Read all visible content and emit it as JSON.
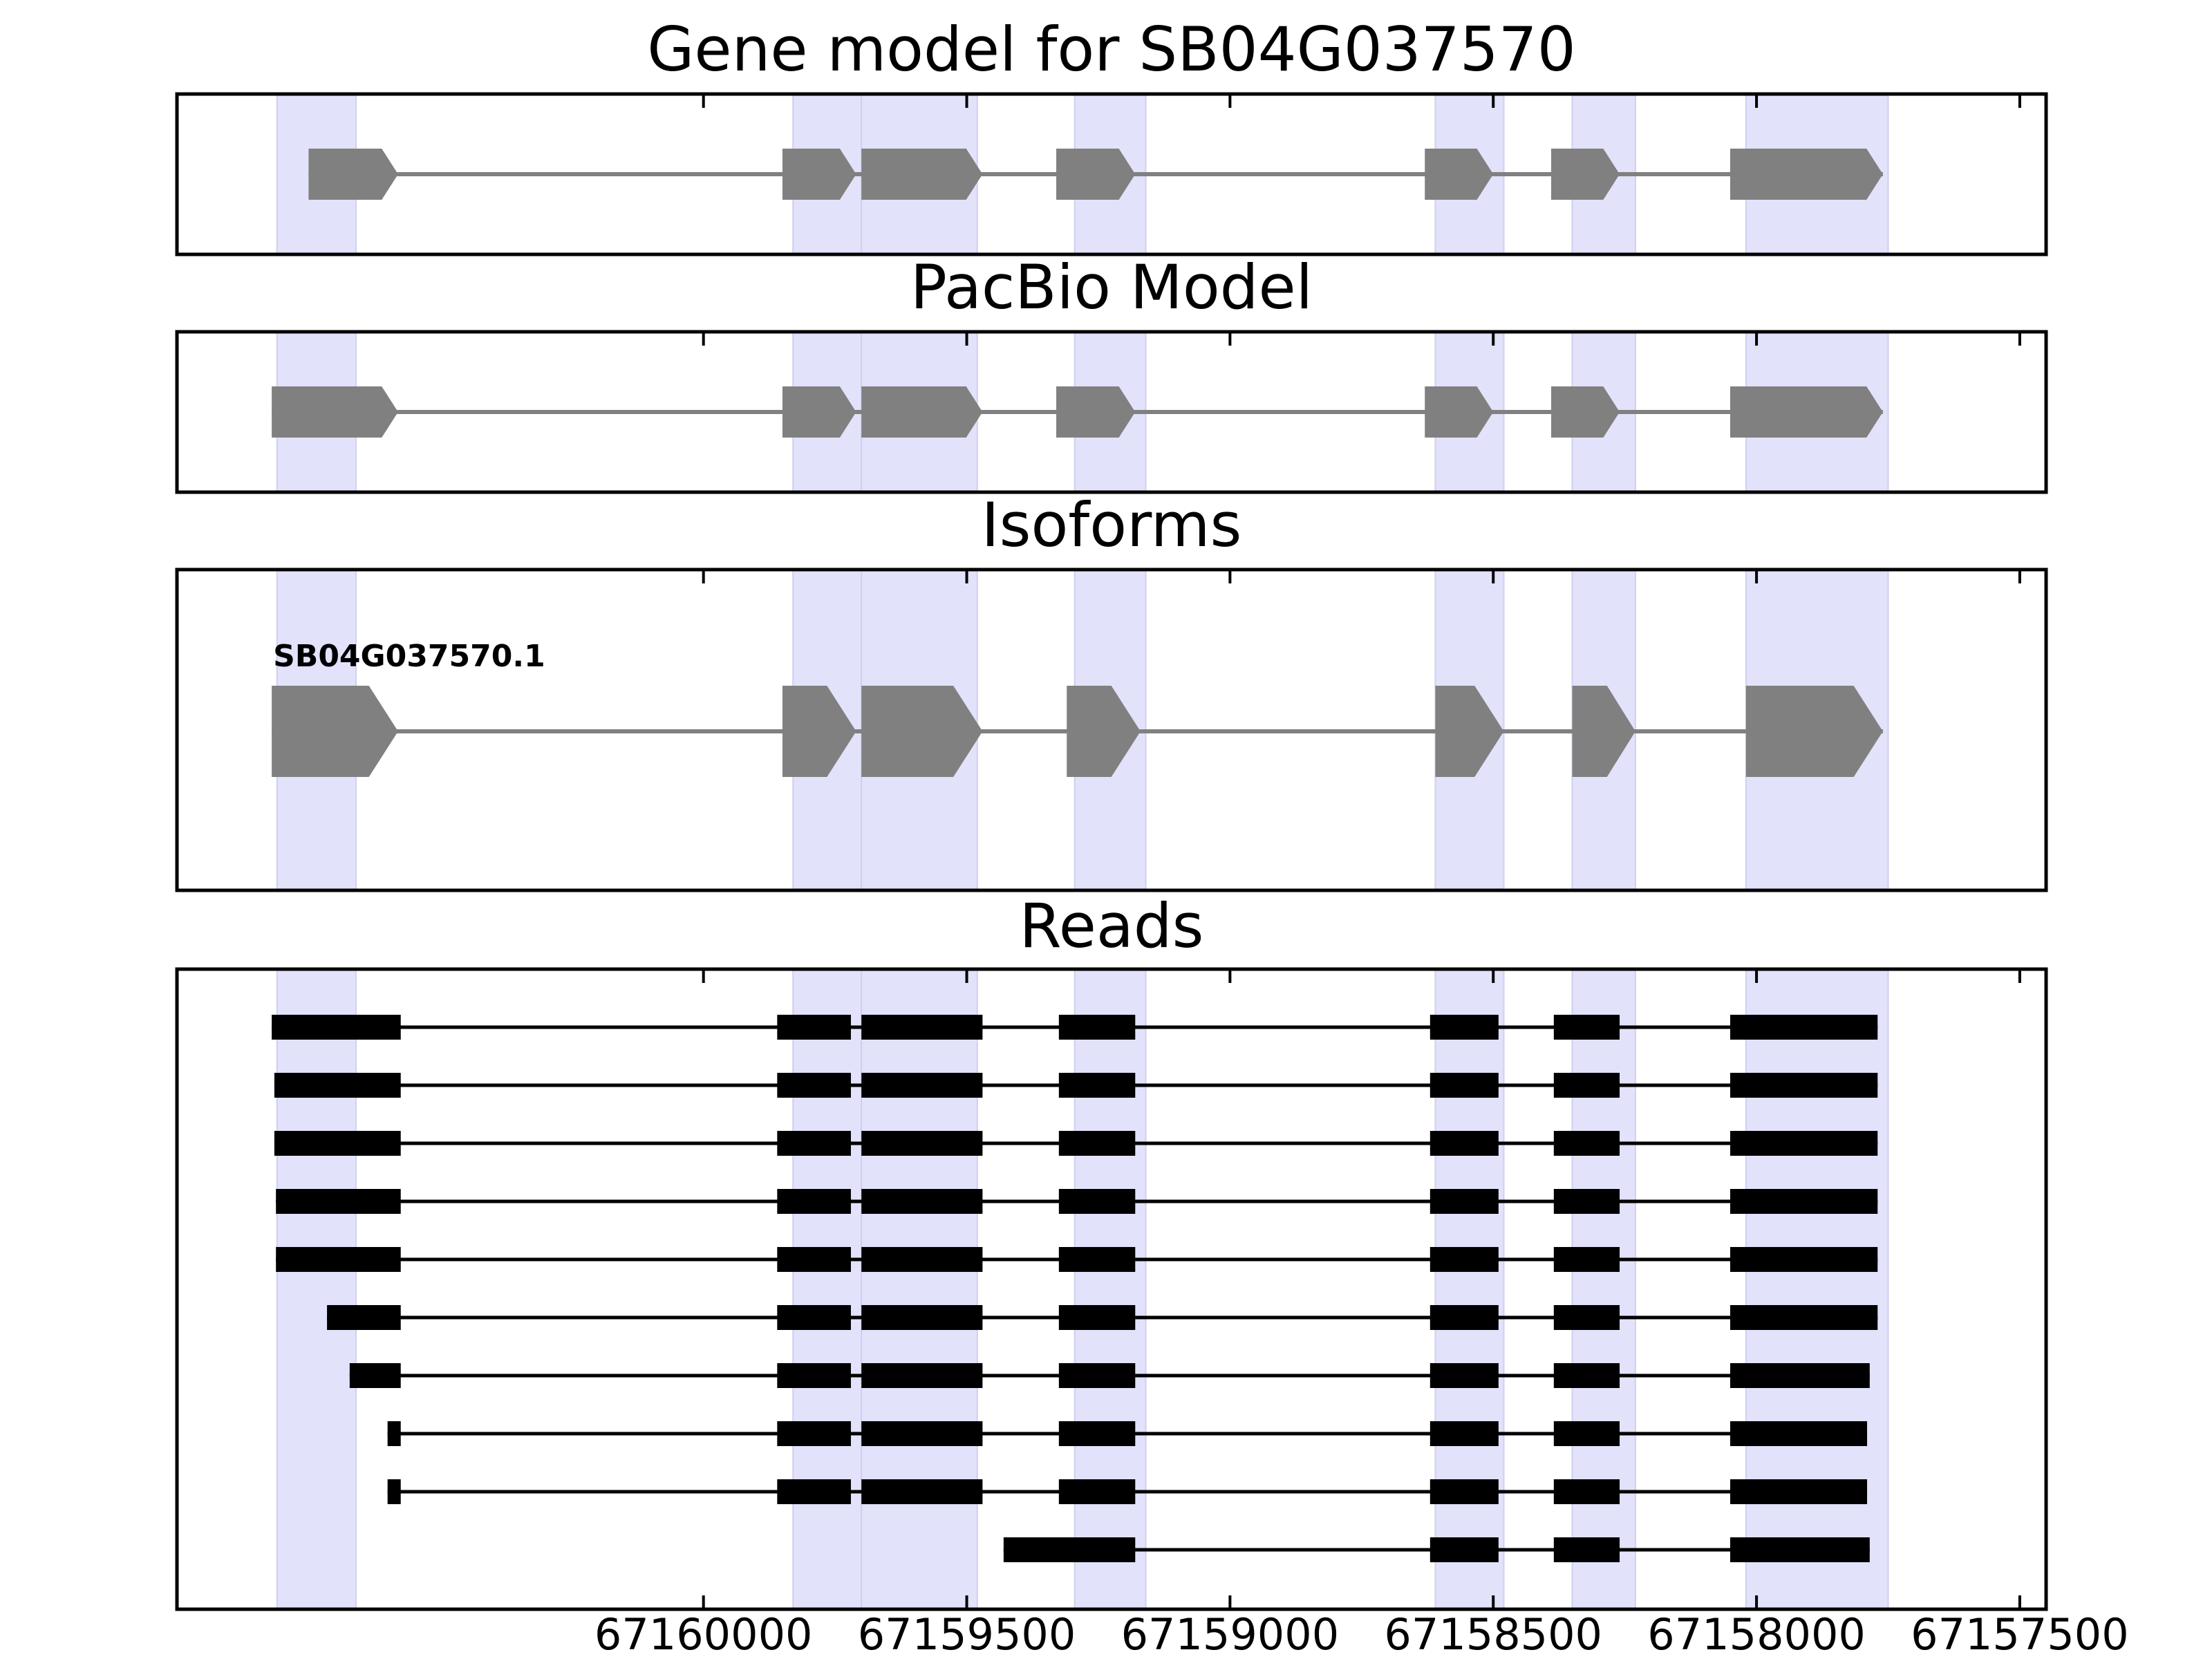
{
  "chart_data": {
    "type": "gene-structure",
    "x_axis": {
      "reversed": true,
      "range": [
        67161000,
        67157450
      ],
      "ticks": [
        67160000,
        67159500,
        67159000,
        67158500,
        67158000,
        67157500
      ],
      "tick_labels": [
        "67160000",
        "67159500",
        "67159000",
        "67158500",
        "67158000",
        "67157500"
      ]
    },
    "colors": {
      "exon_highlight": "#e2e2fb",
      "model_exon": "#808080",
      "read_exon": "#000000",
      "frame": "#000000"
    },
    "highlight_exons": [
      [
        67160660,
        67160810
      ],
      [
        67159700,
        67159830
      ],
      [
        67159480,
        67159700
      ],
      [
        67159160,
        67159295
      ],
      [
        67158480,
        67158610
      ],
      [
        67158230,
        67158350
      ],
      [
        67157750,
        67158020
      ]
    ],
    "panels": [
      {
        "title": "Gene model for SB04G037570",
        "kind": "model",
        "features": [
          {
            "strand": "-",
            "exons": [
              [
                67160580,
                67160750
              ],
              [
                67159710,
                67159850
              ],
              [
                67159470,
                67159700
              ],
              [
                67159180,
                67159330
              ],
              [
                67158500,
                67158630
              ],
              [
                67158260,
                67158390
              ],
              [
                67157760,
                67158050
              ]
            ]
          }
        ]
      },
      {
        "title": "PacBio Model",
        "kind": "model",
        "features": [
          {
            "strand": "-",
            "exons": [
              [
                67160580,
                67160820
              ],
              [
                67159710,
                67159850
              ],
              [
                67159470,
                67159700
              ],
              [
                67159180,
                67159330
              ],
              [
                67158500,
                67158630
              ],
              [
                67158260,
                67158390
              ],
              [
                67157760,
                67158050
              ]
            ]
          }
        ]
      },
      {
        "title": "Isoforms",
        "kind": "model",
        "features": [
          {
            "label": "SB04G037570.1",
            "strand": "-",
            "exons": [
              [
                67160580,
                67160820
              ],
              [
                67159710,
                67159850
              ],
              [
                67159470,
                67159700
              ],
              [
                67159170,
                67159310
              ],
              [
                67158480,
                67158610
              ],
              [
                67158230,
                67158350
              ],
              [
                67157760,
                67158020
              ]
            ]
          }
        ]
      },
      {
        "title": "Reads",
        "kind": "reads",
        "features": [
          {
            "exons": [
              [
                67160575,
                67160820
              ],
              [
                67159720,
                67159860
              ],
              [
                67159470,
                67159700
              ],
              [
                67159180,
                67159325
              ],
              [
                67158490,
                67158620
              ],
              [
                67158260,
                67158385
              ],
              [
                67157770,
                67158050
              ]
            ]
          },
          {
            "exons": [
              [
                67160575,
                67160815
              ],
              [
                67159720,
                67159860
              ],
              [
                67159470,
                67159700
              ],
              [
                67159180,
                67159325
              ],
              [
                67158490,
                67158620
              ],
              [
                67158260,
                67158385
              ],
              [
                67157770,
                67158050
              ]
            ]
          },
          {
            "exons": [
              [
                67160575,
                67160815
              ],
              [
                67159720,
                67159860
              ],
              [
                67159470,
                67159700
              ],
              [
                67159180,
                67159325
              ],
              [
                67158490,
                67158620
              ],
              [
                67158260,
                67158385
              ],
              [
                67157770,
                67158050
              ]
            ]
          },
          {
            "exons": [
              [
                67160575,
                67160812
              ],
              [
                67159720,
                67159860
              ],
              [
                67159470,
                67159700
              ],
              [
                67159180,
                67159325
              ],
              [
                67158490,
                67158620
              ],
              [
                67158260,
                67158385
              ],
              [
                67157770,
                67158050
              ]
            ]
          },
          {
            "exons": [
              [
                67160575,
                67160812
              ],
              [
                67159720,
                67159860
              ],
              [
                67159470,
                67159700
              ],
              [
                67159180,
                67159325
              ],
              [
                67158490,
                67158620
              ],
              [
                67158260,
                67158385
              ],
              [
                67157770,
                67158050
              ]
            ]
          },
          {
            "exons": [
              [
                67160575,
                67160715
              ],
              [
                67159720,
                67159860
              ],
              [
                67159470,
                67159700
              ],
              [
                67159180,
                67159325
              ],
              [
                67158490,
                67158620
              ],
              [
                67158260,
                67158385
              ],
              [
                67157770,
                67158050
              ]
            ]
          },
          {
            "exons": [
              [
                67160575,
                67160672
              ],
              [
                67159720,
                67159860
              ],
              [
                67159470,
                67159700
              ],
              [
                67159180,
                67159325
              ],
              [
                67158490,
                67158620
              ],
              [
                67158260,
                67158385
              ],
              [
                67157785,
                67158050
              ]
            ]
          },
          {
            "exons": [
              [
                67160575,
                67160600
              ],
              [
                67159720,
                67159860
              ],
              [
                67159470,
                67159700
              ],
              [
                67159180,
                67159325
              ],
              [
                67158490,
                67158620
              ],
              [
                67158260,
                67158385
              ],
              [
                67157790,
                67158050
              ]
            ]
          },
          {
            "exons": [
              [
                67160575,
                67160600
              ],
              [
                67159720,
                67159860
              ],
              [
                67159470,
                67159700
              ],
              [
                67159180,
                67159325
              ],
              [
                67158490,
                67158620
              ],
              [
                67158260,
                67158385
              ],
              [
                67157790,
                67158050
              ]
            ]
          },
          {
            "exons": [
              [
                67159305,
                67159430
              ],
              [
                67159180,
                67159325
              ],
              [
                67158490,
                67158620
              ],
              [
                67158260,
                67158385
              ],
              [
                67157785,
                67158050
              ]
            ]
          }
        ]
      }
    ]
  }
}
